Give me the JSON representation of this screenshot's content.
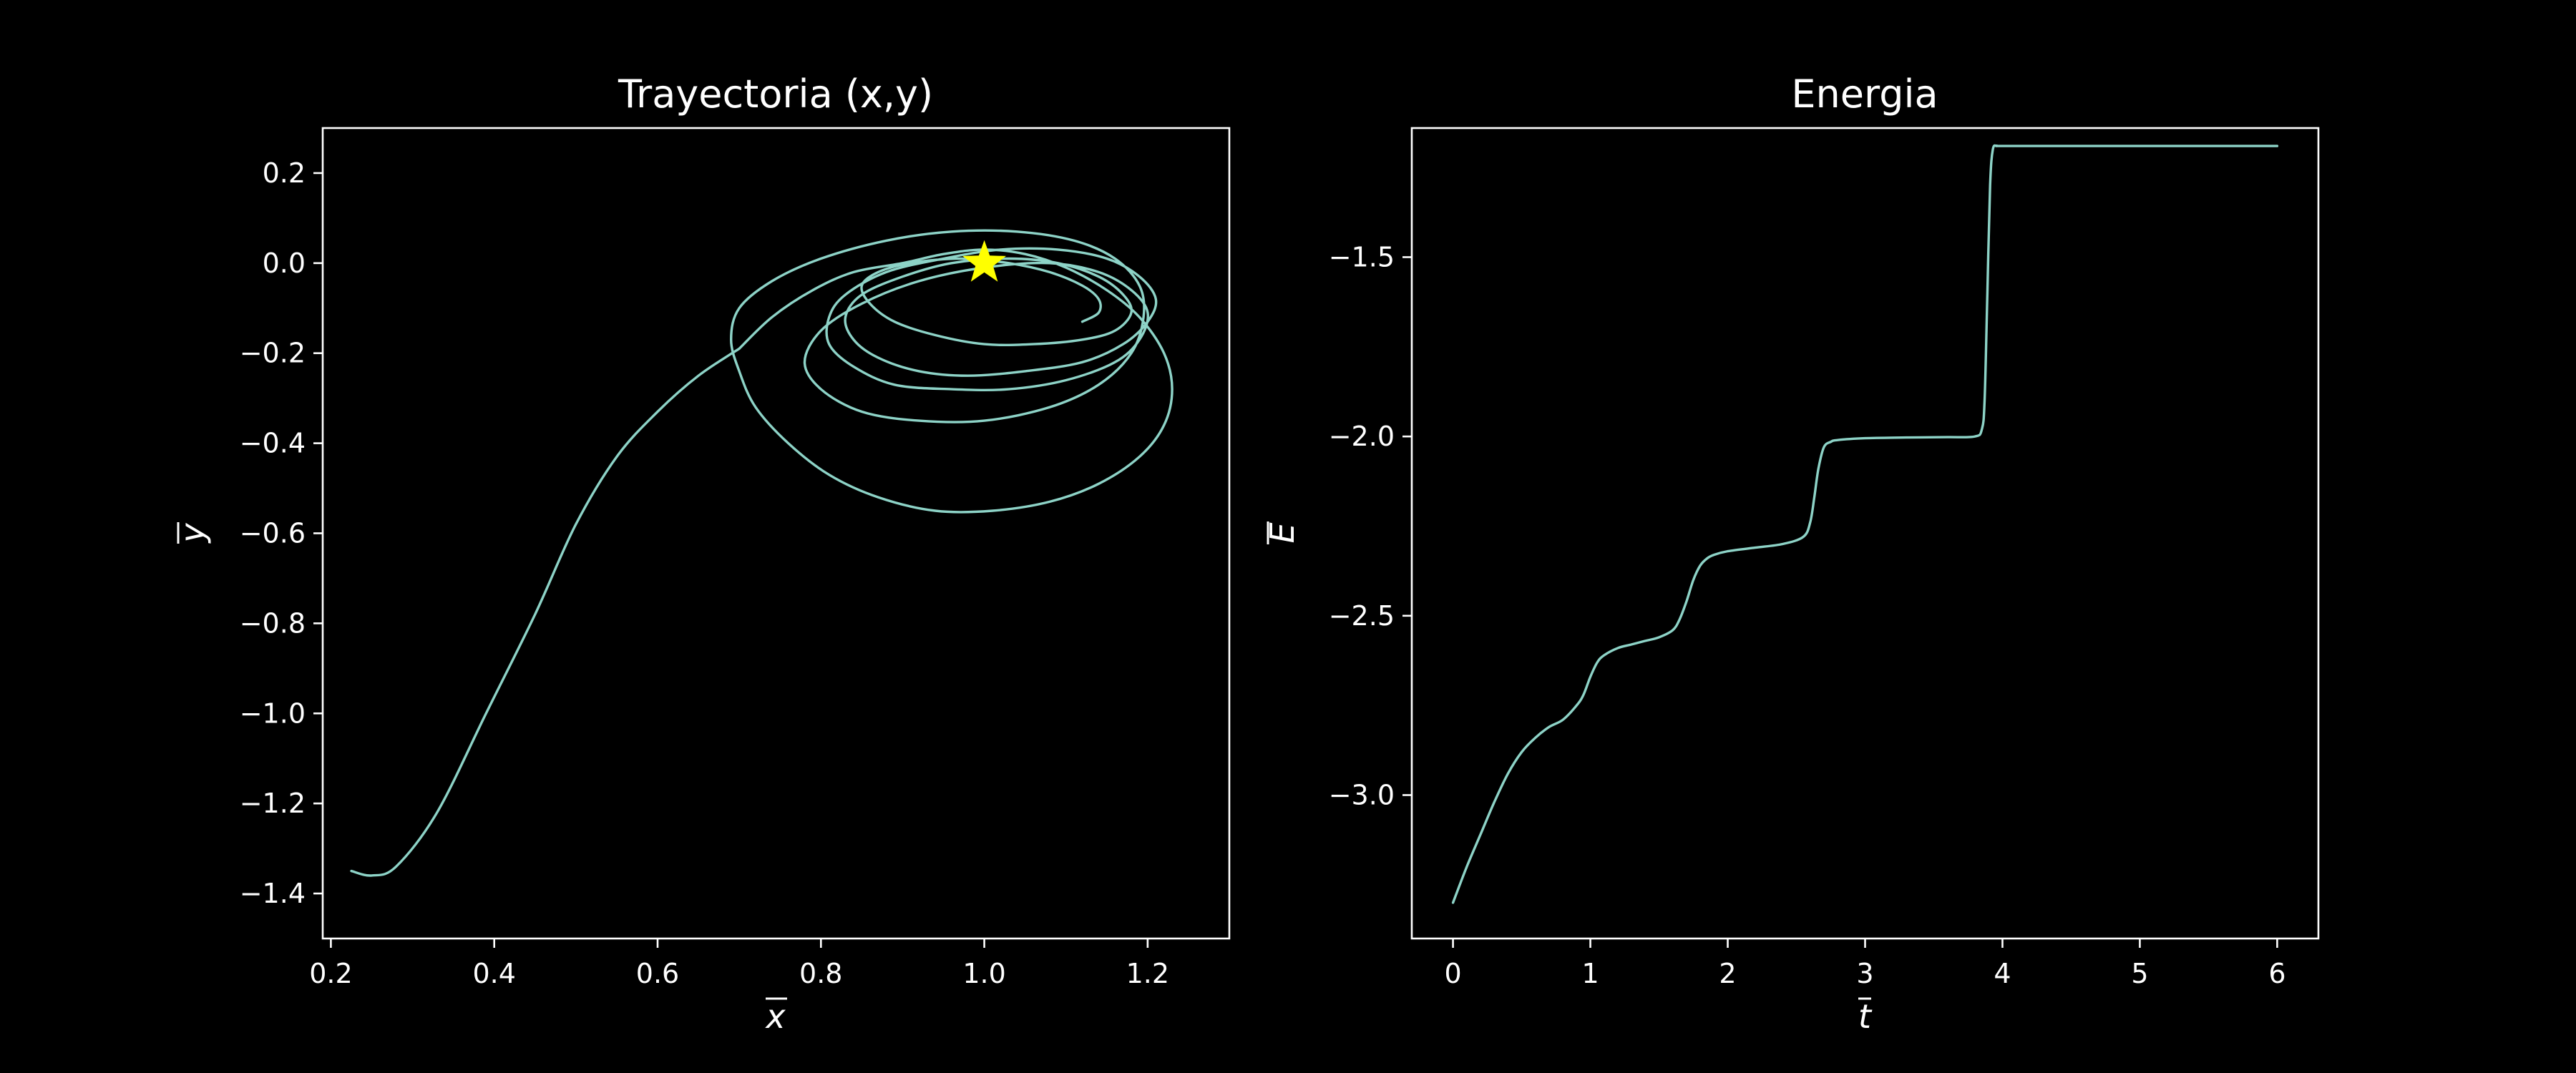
{
  "colors": {
    "background": "#000000",
    "foreground": "#ffffff",
    "line": "#8dd3c7",
    "marker": "#ffff00"
  },
  "chart_data": [
    {
      "type": "line",
      "title": "Trayectoria (x,y)",
      "xlabel": "x",
      "ylabel": "y",
      "xlim": [
        0.19,
        1.3
      ],
      "ylim": [
        -1.5,
        0.3
      ],
      "xticks": [
        0.2,
        0.4,
        0.6,
        0.8,
        1.0,
        1.2
      ],
      "xtick_labels": [
        "0.2",
        "0.4",
        "0.6",
        "0.8",
        "1.0",
        "1.2"
      ],
      "yticks": [
        0.2,
        0.0,
        -0.2,
        -0.4,
        -0.6,
        -0.8,
        -1.0,
        -1.2,
        -1.4
      ],
      "ytick_labels": [
        "0.2",
        "0.0",
        "−0.2",
        "−0.4",
        "−0.6",
        "−0.8",
        "−1.0",
        "−1.2",
        "−1.4"
      ],
      "grid": false,
      "series": [
        {
          "x": [
            0.225,
            0.25,
            0.28,
            0.33,
            0.39,
            0.45,
            0.5,
            0.55,
            0.6,
            0.65,
            0.7
          ],
          "y": [
            -1.35,
            -1.36,
            -1.34,
            -1.22,
            -1.0,
            -0.78,
            -0.58,
            -0.43,
            -0.33,
            -0.25,
            -0.19
          ]
        },
        {
          "x": [
            0.7,
            0.74,
            0.79,
            0.84,
            0.9,
            0.95,
            1.0,
            1.05,
            1.1,
            1.15,
            1.19,
            1.22,
            1.23,
            1.22,
            1.19,
            1.14,
            1.08,
            1.01,
            0.94,
            0.87,
            0.81,
            0.76,
            0.72,
            0.7,
            0.69,
            0.7,
            0.74,
            0.8,
            0.88,
            0.96,
            1.04,
            1.11,
            1.16,
            1.19,
            1.195,
            1.18,
            1.14,
            1.08,
            1.0,
            0.92,
            0.85,
            0.8,
            0.78,
            0.8,
            0.85,
            0.92,
            1.0,
            1.08,
            1.14,
            1.18,
            1.2,
            1.19,
            1.16,
            1.1,
            1.03,
            0.96,
            0.89,
            0.84,
            0.81,
            0.81,
            0.83,
            0.88,
            0.95,
            1.02,
            1.09,
            1.15,
            1.19,
            1.21,
            1.2,
            1.17,
            1.12,
            1.05,
            0.98,
            0.92,
            0.87,
            0.84,
            0.83,
            0.85,
            0.9,
            0.96,
            1.03,
            1.09,
            1.14,
            1.17,
            1.18,
            1.16,
            1.12,
            1.06,
            1.0,
            0.94,
            0.89,
            0.86,
            0.85,
            0.87,
            0.91,
            0.97,
            1.03,
            1.08,
            1.12,
            1.14,
            1.14,
            1.12
          ],
          "y": [
            -0.19,
            -0.12,
            -0.06,
            -0.02,
            0.0,
            0.02,
            0.03,
            0.02,
            -0.01,
            -0.06,
            -0.12,
            -0.2,
            -0.28,
            -0.36,
            -0.43,
            -0.49,
            -0.53,
            -0.55,
            -0.55,
            -0.52,
            -0.47,
            -0.4,
            -0.32,
            -0.24,
            -0.17,
            -0.1,
            -0.04,
            0.01,
            0.05,
            0.07,
            0.07,
            0.05,
            0.01,
            -0.05,
            -0.12,
            -0.2,
            -0.27,
            -0.32,
            -0.35,
            -0.35,
            -0.33,
            -0.28,
            -0.22,
            -0.15,
            -0.09,
            -0.04,
            -0.01,
            0.0,
            -0.02,
            -0.06,
            -0.11,
            -0.17,
            -0.22,
            -0.26,
            -0.28,
            -0.28,
            -0.27,
            -0.23,
            -0.18,
            -0.12,
            -0.07,
            -0.02,
            0.01,
            0.03,
            0.03,
            0.01,
            -0.03,
            -0.08,
            -0.13,
            -0.18,
            -0.22,
            -0.24,
            -0.25,
            -0.24,
            -0.21,
            -0.17,
            -0.12,
            -0.07,
            -0.03,
            0.0,
            0.01,
            0.0,
            -0.03,
            -0.07,
            -0.11,
            -0.15,
            -0.17,
            -0.18,
            -0.18,
            -0.16,
            -0.13,
            -0.09,
            -0.05,
            -0.02,
            0.0,
            0.01,
            0.0,
            -0.02,
            -0.05,
            -0.08,
            -0.11,
            -0.13
          ]
        }
      ],
      "marker": {
        "x": 1.0,
        "y": 0.0,
        "shape": "star"
      }
    },
    {
      "type": "line",
      "title": "Energia",
      "xlabel": "t",
      "ylabel": "E",
      "xlim": [
        -0.3,
        6.3
      ],
      "ylim": [
        -3.4,
        -1.14
      ],
      "xticks": [
        0,
        1,
        2,
        3,
        4,
        5,
        6
      ],
      "xtick_labels": [
        "0",
        "1",
        "2",
        "3",
        "4",
        "5",
        "6"
      ],
      "yticks": [
        -1.5,
        -2.0,
        -2.5,
        -3.0
      ],
      "ytick_labels": [
        "−1.5",
        "−2.0",
        "−2.5",
        "−3.0"
      ],
      "grid": false,
      "series": [
        {
          "x": [
            0.0,
            0.1,
            0.2,
            0.3,
            0.4,
            0.5,
            0.6,
            0.7,
            0.8,
            0.9,
            0.95,
            1.0,
            1.05,
            1.1,
            1.2,
            1.3,
            1.4,
            1.5,
            1.6,
            1.65,
            1.7,
            1.75,
            1.8,
            1.85,
            1.9,
            2.0,
            2.2,
            2.4,
            2.55,
            2.6,
            2.63,
            2.66,
            2.7,
            2.75,
            2.8,
            3.0,
            3.3,
            3.6,
            3.8,
            3.85,
            3.87,
            3.89,
            3.91,
            3.93,
            3.96,
            4.0,
            4.5,
            5.0,
            5.5,
            6.0
          ],
          "y": [
            -3.3,
            -3.2,
            -3.11,
            -3.02,
            -2.94,
            -2.88,
            -2.84,
            -2.81,
            -2.79,
            -2.75,
            -2.72,
            -2.67,
            -2.63,
            -2.61,
            -2.59,
            -2.58,
            -2.57,
            -2.56,
            -2.54,
            -2.51,
            -2.46,
            -2.4,
            -2.36,
            -2.34,
            -2.33,
            -2.32,
            -2.31,
            -2.3,
            -2.28,
            -2.24,
            -2.17,
            -2.09,
            -2.03,
            -2.015,
            -2.01,
            -2.005,
            -2.003,
            -2.002,
            -2.0,
            -1.98,
            -1.9,
            -1.6,
            -1.3,
            -1.2,
            -1.19,
            -1.19,
            -1.19,
            -1.19,
            -1.19,
            -1.19
          ]
        }
      ]
    }
  ]
}
